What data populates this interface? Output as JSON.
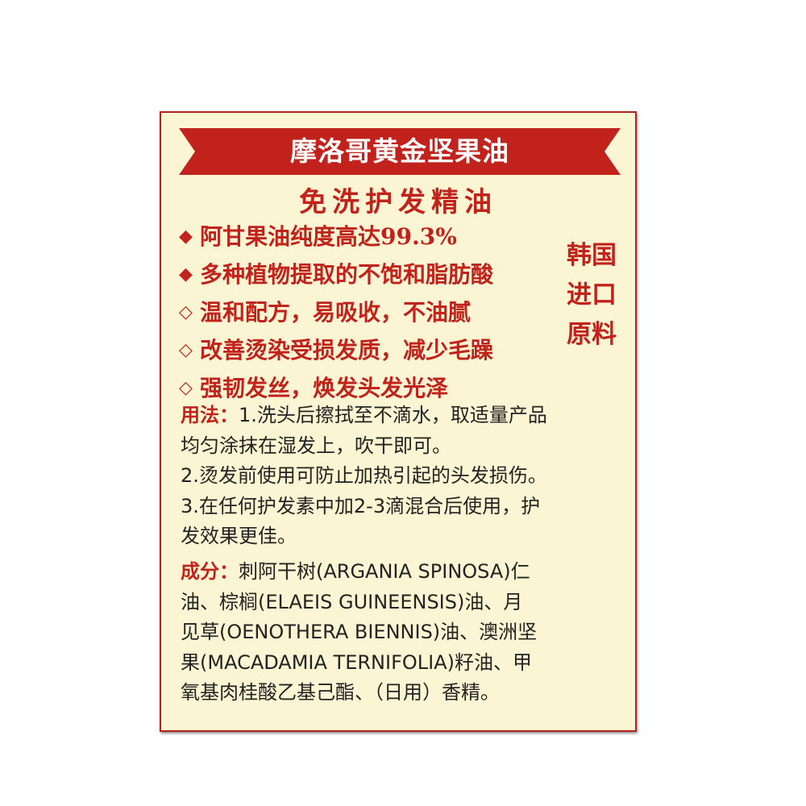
{
  "label": {
    "banner_title": "摩洛哥黄金坚果油",
    "subtitle": "免洗护发精油",
    "features": [
      {
        "bullet": "◆",
        "text": "阿甘果油纯度高达99.3%"
      },
      {
        "bullet": "◆",
        "text": "多种植物提取的不饱和脂肪酸"
      },
      {
        "bullet": "◇",
        "text": "温和配方，易吸收，不油腻"
      },
      {
        "bullet": "◇",
        "text": "改善烫染受损发质，减少毛躁"
      },
      {
        "bullet": "◇",
        "text": "强韧发丝，焕发头发光泽"
      }
    ],
    "side_note": "韩国\n进口\n原料",
    "usage_key": "用法：",
    "usage_lines": [
      "1.洗头后擦拭至不滴水，取适量产品",
      "均匀涂抹在湿发上，吹干即可。",
      "2.烫发前使用可防止加热引起的头发损伤。",
      "3.在任何护发素中加2-3滴混合后使用，护",
      "发效果更佳。"
    ],
    "ingredients_key": "成分：",
    "ingredients_lines": [
      "刺阿干树(ARGANIA SPINOSA)仁",
      "油、棕榈(ELAEIS GUINEENSIS)油、月",
      "见草(OENOTHERA BIENNIS)油、澳洲坚",
      "果(MACADAMIA TERNIFOLIA)籽油、甲",
      "氧基肉桂酸乙基己酯、（日用）香精。"
    ]
  },
  "colors": {
    "accent_red": "#c1221b",
    "banner_red": "#c1221b",
    "label_background": "#fcf5d3",
    "body_text": "#222222"
  }
}
